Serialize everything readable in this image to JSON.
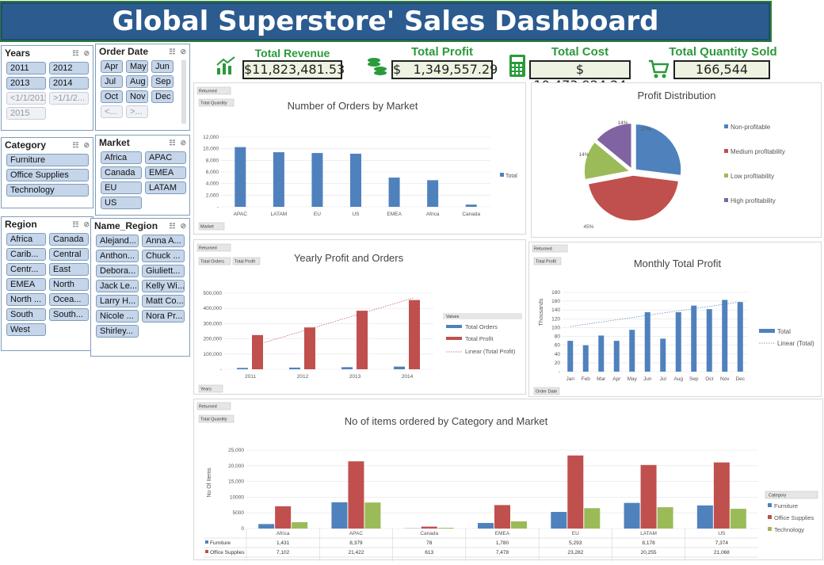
{
  "title": "Global Superstore' Sales Dashboard",
  "slicers": {
    "years": {
      "title": "Years",
      "items": [
        "2011",
        "2012",
        "2013",
        "2014",
        "<1/1/2011",
        ">1/1/2...",
        "2015"
      ]
    },
    "order_date": {
      "title": "Order Date",
      "items": [
        "Apr",
        "May",
        "Jun",
        "Jul",
        "Aug",
        "Sep",
        "Oct",
        "Nov",
        "Dec",
        "<...",
        ">..."
      ]
    },
    "category": {
      "title": "Category",
      "items": [
        "Furniture",
        "Office Supplies",
        "Technology"
      ]
    },
    "market": {
      "title": "Market",
      "items": [
        "Africa",
        "APAC",
        "Canada",
        "EMEA",
        "EU",
        "LATAM",
        "US"
      ]
    },
    "region": {
      "title": "Region",
      "items": [
        "Africa",
        "Canada",
        "Carib...",
        "Central",
        "Centr...",
        "East",
        "EMEA",
        "North",
        "North ...",
        "Ocea...",
        "South",
        "South...",
        "West"
      ]
    },
    "name_region": {
      "title": "Name_Region",
      "items": [
        "Alejand...",
        "Anna A...",
        "Anthon...",
        "Chuck ...",
        "Debora...",
        "Giuliett...",
        "Jack Le...",
        "Kelly Wi...",
        "Larry H...",
        "Matt Co...",
        "Nicole ...",
        "Nora Pr...",
        "Shirley..."
      ]
    }
  },
  "kpis": [
    {
      "title": "Total Revenue",
      "value": "$11,823,481.53",
      "icon": "bar-chart-icon"
    },
    {
      "title": "Total Profit",
      "value": "$   1,349,557.29",
      "icon": "coins-icon"
    },
    {
      "title": "Total Cost",
      "value": "$ 10,473,924.24",
      "icon": "calculator-icon"
    },
    {
      "title": "Total Quantity Sold",
      "value": "166,544",
      "icon": "cart-icon"
    }
  ],
  "chart_data": [
    {
      "type": "bar",
      "title": "Number of Orders by Market",
      "categories": [
        "APAC",
        "LATAM",
        "EU",
        "US",
        "EMEA",
        "Africa",
        "Canada"
      ],
      "series": [
        {
          "name": "Total",
          "values": [
            10276,
            9396,
            9258,
            9141,
            5031,
            4583,
            384
          ]
        }
      ],
      "ylim": [
        0,
        12000
      ],
      "yticks": [
        "-",
        "2,000",
        "4,000",
        "6,000",
        "8,000",
        "10,000",
        "12,000"
      ],
      "legend": "right",
      "filters": [
        "Returned",
        "Total Quantity",
        "Market"
      ]
    },
    {
      "type": "pie",
      "title": "Profit Distribution",
      "labels": [
        "Non-profitable",
        "Medium profitability",
        "Low profitability",
        "High profitability"
      ],
      "values": [
        27,
        45,
        14,
        14
      ],
      "label_text": [
        "27%",
        "45%",
        "14%",
        "14%"
      ],
      "colors": [
        "#4f81bd",
        "#c0504d",
        "#9bbb59",
        "#8064a2"
      ],
      "legend": "right"
    },
    {
      "type": "bar",
      "title": "Yearly Profit and Orders",
      "categories": [
        "2011",
        "2012",
        "2013",
        "2014"
      ],
      "series": [
        {
          "name": "Total Orders",
          "values": [
            8998,
            10962,
            13799,
            17531
          ]
        },
        {
          "name": "Total Profit",
          "values": [
            225000,
            275000,
            385000,
            455000
          ]
        }
      ],
      "trend_name": "Linear (Total Profit)",
      "legend_title": "Values",
      "ylim": [
        0,
        500000
      ],
      "yticks": [
        "-",
        "100,000",
        "200,000",
        "300,000",
        "400,000",
        "500,000"
      ],
      "filters": [
        "Returned",
        "Total Orders",
        "Total Profit",
        "Years"
      ]
    },
    {
      "type": "bar",
      "title": "Monthly Total Profit",
      "categories": [
        "Jan",
        "Feb",
        "Mar",
        "Apr",
        "May",
        "Jun",
        "Jul",
        "Aug",
        "Sep",
        "Oct",
        "Nov",
        "Dec"
      ],
      "series": [
        {
          "name": "Total",
          "values": [
            70,
            60,
            82,
            70,
            95,
            135,
            75,
            135,
            150,
            142,
            163,
            158
          ]
        }
      ],
      "trend_name": "Linear (Total)",
      "ylabel": "Thousands",
      "ylim": [
        0,
        180
      ],
      "yticks": [
        "-",
        "20",
        "40",
        "60",
        "80",
        "100",
        "120",
        "140",
        "160",
        "180"
      ],
      "filters": [
        "Returned",
        "Total Profit",
        "Order Date"
      ]
    },
    {
      "type": "bar",
      "title": "No of items ordered by Category and Market",
      "categories": [
        "Africa",
        "APAC",
        "Canada",
        "EMEA",
        "EU",
        "LATAM",
        "US"
      ],
      "series": [
        {
          "name": "Furniture",
          "values": [
            1431,
            8379,
            78,
            1780,
            5293,
            8178,
            7374
          ],
          "labels": [
            "1,431",
            "8,379",
            "78",
            "1,780",
            "5,293",
            "8,178",
            "7,374"
          ]
        },
        {
          "name": "Office Supplies",
          "values": [
            7102,
            21422,
            613,
            7478,
            23282,
            20255,
            21068
          ],
          "labels": [
            "7,102",
            "21,422",
            "613",
            "7,478",
            "23,282",
            "20,255",
            "21,068"
          ]
        },
        {
          "name": "Technology",
          "values": [
            2030,
            8300,
            240,
            2300,
            6500,
            6800,
            6300
          ]
        }
      ],
      "ylabel": "No Of Items",
      "ylim": [
        0,
        25000
      ],
      "yticks": [
        "0",
        "5000",
        "10000",
        "15,000",
        "20,000",
        "25,000"
      ],
      "legend_title": "Category",
      "filters": [
        "Returned",
        "Total Quantity"
      ]
    }
  ]
}
